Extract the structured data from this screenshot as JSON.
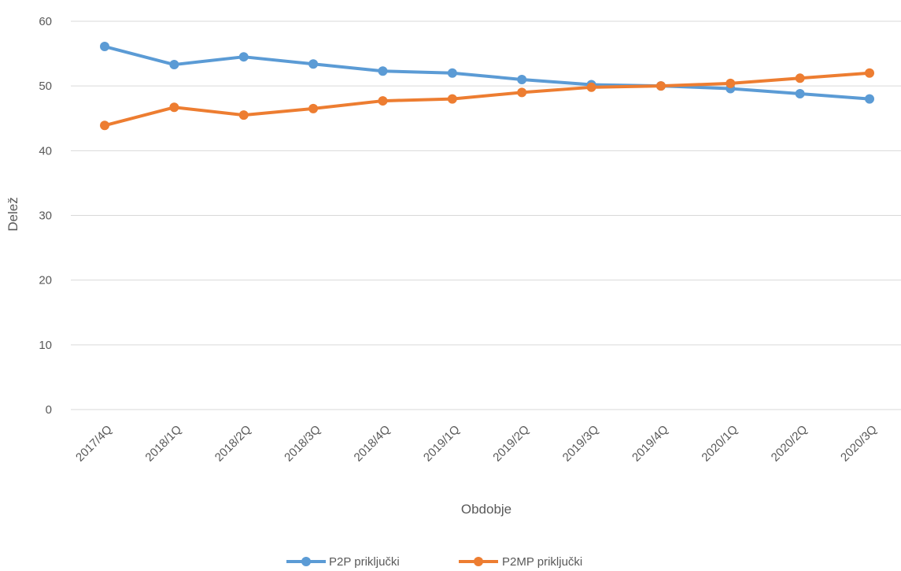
{
  "chart_data": {
    "type": "line",
    "title": "",
    "xlabel": "Obdobje",
    "ylabel": "Delež",
    "ylim": [
      0,
      60
    ],
    "yticks": [
      0,
      10,
      20,
      30,
      40,
      50,
      60
    ],
    "grid": true,
    "legend_position": "bottom",
    "categories": [
      "2017/4Q",
      "2018/1Q",
      "2018/2Q",
      "2018/3Q",
      "2018/4Q",
      "2019/1Q",
      "2019/2Q",
      "2019/3Q",
      "2019/4Q",
      "2020/1Q",
      "2020/2Q",
      "2020/3Q"
    ],
    "series": [
      {
        "name": "P2P priključki",
        "color": "#5b9bd5",
        "values": [
          56.1,
          53.3,
          54.5,
          53.4,
          52.3,
          52.0,
          51.0,
          50.2,
          50.0,
          49.6,
          48.8,
          48.0
        ]
      },
      {
        "name": "P2MP priključki",
        "color": "#ed7d31",
        "values": [
          43.9,
          46.7,
          45.5,
          46.5,
          47.7,
          48.0,
          49.0,
          49.8,
          50.0,
          50.4,
          51.2,
          52.0
        ]
      }
    ]
  }
}
